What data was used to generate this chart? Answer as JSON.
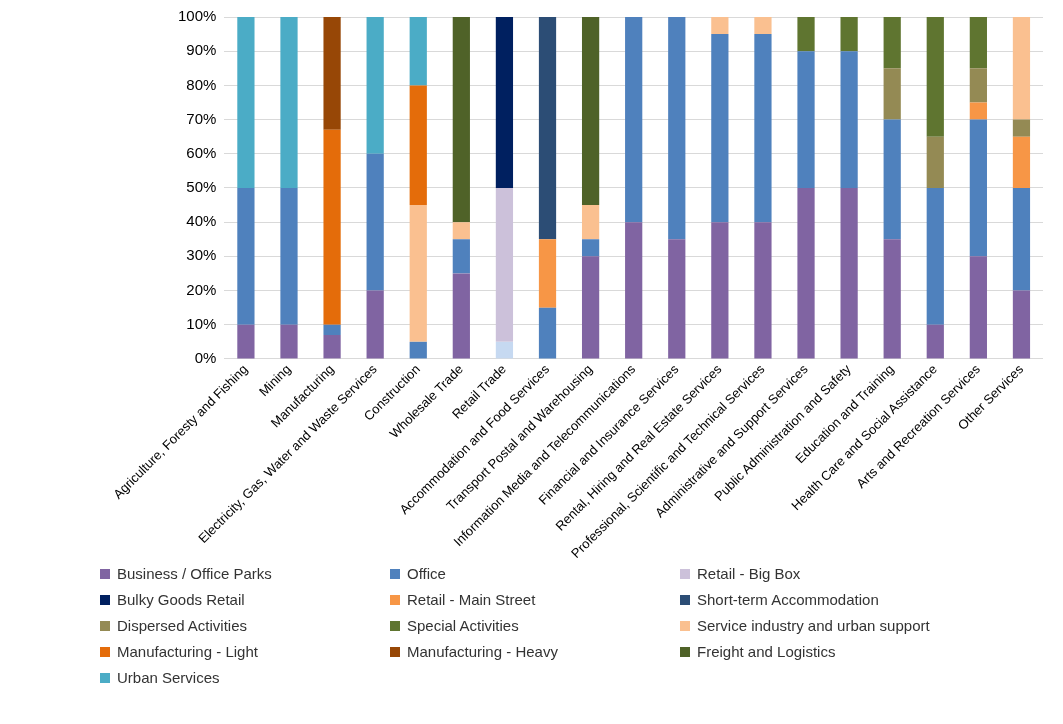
{
  "chart_data": {
    "type": "bar",
    "stacked": true,
    "grid": "y",
    "legend": "bottom",
    "categories": [
      "Agriculture, Foresty and Fishing",
      "Mining",
      "Manufacturing",
      "Electricity, Gas, Water and Waste Services",
      "Construction",
      "Wholesale Trade",
      "Retail Trade",
      "Accommodation and Food Services",
      "Transport Postal and Warehousing",
      "Information Media and Telecommunications",
      "Financial and Insurance Services",
      "Rental, Hiring and Real Estate Services",
      "Professional, Scientific and Technical Services",
      "Administrative and Support Services",
      "Public Administration and Safety",
      "Education and Training",
      "Health Care and Social Assistance",
      "Arts and Recreation Services",
      "Other Services"
    ],
    "ylim": [
      0,
      100
    ],
    "yticks": [
      {
        "value": 0,
        "label": "0%"
      },
      {
        "value": 10,
        "label": "10%"
      },
      {
        "value": 20,
        "label": "20%"
      },
      {
        "value": 30,
        "label": "30%"
      },
      {
        "value": 40,
        "label": "40%"
      },
      {
        "value": 50,
        "label": "50%"
      },
      {
        "value": 60,
        "label": "60%"
      },
      {
        "value": 70,
        "label": "70%"
      },
      {
        "value": 80,
        "label": "80%"
      },
      {
        "value": 90,
        "label": "90%"
      },
      {
        "value": 100,
        "label": "100%"
      }
    ],
    "series": [
      {
        "name": "Business / Office Parks",
        "color": "#8064a2",
        "values": [
          10,
          10,
          7,
          20,
          null,
          25,
          null,
          null,
          30,
          40,
          35,
          40,
          40,
          50,
          50,
          35,
          10,
          30,
          20
        ]
      },
      {
        "name": "Office",
        "color": "#4f81bd",
        "colors": [
          "#4f81bd",
          "#4f81bd",
          "#4f81bd",
          "#4f81bd",
          "#4f81bd",
          "#4f81bd",
          "#c6d9f1",
          "#4f81bd",
          "#4f81bd",
          "#4f81bd",
          "#4f81bd",
          "#4f81bd",
          "#4f81bd",
          "#4f81bd",
          "#4f81bd",
          "#4f81bd",
          "#4f81bd",
          "#4f81bd",
          "#4f81bd"
        ],
        "values": [
          40,
          40,
          3,
          40,
          5,
          10,
          5,
          15,
          5,
          60,
          65,
          55,
          55,
          40,
          40,
          35,
          40,
          40,
          30
        ]
      },
      {
        "name": "Retail - Big Box",
        "color": "#ccc1da",
        "values": [
          null,
          null,
          null,
          null,
          null,
          null,
          45,
          null,
          null,
          null,
          null,
          null,
          null,
          null,
          null,
          null,
          null,
          null,
          null
        ]
      },
      {
        "name": "Bulky Goods Retail",
        "color": "#002060",
        "values": [
          null,
          null,
          null,
          null,
          null,
          null,
          50,
          null,
          null,
          null,
          null,
          null,
          null,
          null,
          null,
          null,
          null,
          null,
          null
        ]
      },
      {
        "name": "Retail - Main Street",
        "color": "#f79646",
        "values": [
          null,
          null,
          null,
          null,
          null,
          null,
          null,
          20,
          null,
          null,
          null,
          null,
          null,
          null,
          null,
          null,
          null,
          5,
          15
        ]
      },
      {
        "name": "Short-term Accommodation",
        "color": "#2c4d75",
        "values": [
          null,
          null,
          null,
          null,
          null,
          null,
          null,
          65,
          null,
          null,
          null,
          null,
          null,
          null,
          null,
          null,
          null,
          null,
          null
        ]
      },
      {
        "name": "Dispersed Activities",
        "color": "#948a54",
        "values": [
          null,
          null,
          null,
          null,
          null,
          null,
          null,
          null,
          null,
          null,
          null,
          null,
          null,
          null,
          null,
          15,
          15,
          10,
          5
        ]
      },
      {
        "name": "Special Activities",
        "color": "#5f7530",
        "values": [
          null,
          null,
          null,
          null,
          null,
          null,
          null,
          null,
          null,
          null,
          null,
          null,
          null,
          10,
          10,
          15,
          35,
          15,
          null
        ]
      },
      {
        "name": "Service industry and urban support",
        "color": "#fac090",
        "values": [
          null,
          null,
          null,
          null,
          40,
          5,
          null,
          null,
          10,
          null,
          null,
          5,
          5,
          null,
          null,
          null,
          null,
          null,
          30
        ]
      },
      {
        "name": "Manufacturing - Light",
        "color": "#e46c0a",
        "values": [
          null,
          null,
          57,
          null,
          35,
          null,
          null,
          null,
          null,
          null,
          null,
          null,
          null,
          null,
          null,
          null,
          null,
          null,
          null
        ]
      },
      {
        "name": "Manufacturing - Heavy",
        "color": "#974706",
        "values": [
          null,
          null,
          33,
          null,
          null,
          null,
          null,
          null,
          null,
          null,
          null,
          null,
          null,
          null,
          null,
          null,
          null,
          null,
          null
        ]
      },
      {
        "name": "Freight and Logistics",
        "color": "#4f6228",
        "values": [
          null,
          null,
          null,
          null,
          null,
          60,
          null,
          null,
          55,
          null,
          null,
          null,
          null,
          null,
          null,
          null,
          null,
          null,
          null
        ]
      },
      {
        "name": "Urban Services",
        "color": "#4bacc6",
        "values": [
          50,
          50,
          null,
          40,
          20,
          null,
          null,
          null,
          null,
          null,
          null,
          null,
          null,
          null,
          null,
          null,
          null,
          null,
          null
        ]
      }
    ]
  }
}
